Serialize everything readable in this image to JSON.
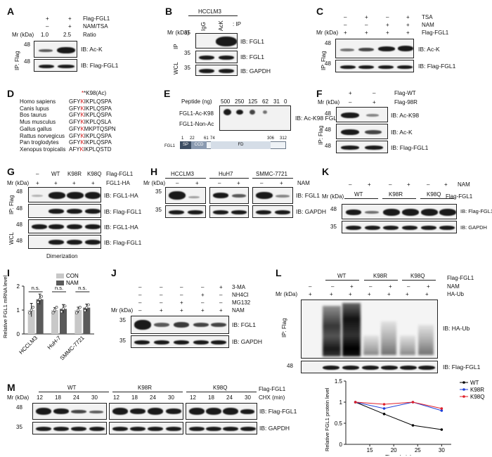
{
  "panel_labels": {
    "A": "A",
    "B": "B",
    "C": "C",
    "D": "D",
    "E": "E",
    "F": "F",
    "G": "G",
    "H": "H",
    "K": "K",
    "I": "I",
    "J": "J",
    "L": "L",
    "M": "M"
  },
  "common": {
    "mr": "Mr (kDa)",
    "ip_flag": "IP: Flag",
    "wcl": "WCL",
    "ip": "IP"
  },
  "A": {
    "rows": [
      "Flag-FGL1",
      "NAM/TSA",
      "Ratio"
    ],
    "row1": [
      "+",
      "+"
    ],
    "row2": [
      "–",
      "+"
    ],
    "ratio": [
      "1.0",
      "2.5"
    ],
    "mw": [
      "48",
      "48"
    ],
    "ib": [
      "IB: Ac-K",
      "IB: Flag-FGL1"
    ]
  },
  "B": {
    "cell": "HCCLM3",
    "lanes": [
      "IgG",
      "AcK"
    ],
    "ip_suffix": ": IP",
    "mw": [
      "35",
      "35",
      "35"
    ],
    "ib": [
      "IB: FGL1",
      "IB: FGL1",
      "IB: GAPDH"
    ]
  },
  "C": {
    "rows": [
      "TSA",
      "NAM",
      "Flag-FGL1"
    ],
    "tsa": [
      "–",
      "+",
      "–",
      "+"
    ],
    "nam": [
      "–",
      "–",
      "+",
      "+"
    ],
    "flag": [
      "+",
      "+",
      "+",
      "+"
    ],
    "mw": [
      "48",
      "48"
    ],
    "ib": [
      "IB: Ac-K",
      "IB: Flag-FGL1"
    ]
  },
  "D": {
    "header": "*K98(Ac)",
    "species": [
      "Homo sapiens",
      "Canis lupus",
      "Bos taurus",
      "Mus musculus",
      "Gallus gallus",
      "Rattus norvegicus",
      "Pan troglodytes",
      "Xenopus tropicalis"
    ],
    "pre": [
      "GFY",
      "GFY",
      "GFY",
      "GFY",
      "GFY",
      "GFY",
      "GFY",
      "AFY"
    ],
    "k": [
      "K",
      "K",
      "K",
      "K",
      "K",
      "K",
      "K",
      "K"
    ],
    "post": [
      "IKPLQSPA",
      "IKPLQSPA",
      "IKPLQSPA",
      "IKPLQSLA",
      "MKPTQSPN",
      "IKPLQSPA",
      "IKPLQSPA",
      "IKPLQSTD"
    ]
  },
  "E": {
    "peptide_label": "Peptide (ng)",
    "amounts": [
      "500",
      "250",
      "125",
      "62",
      "31",
      "0"
    ],
    "rows": [
      "FGL1-Ac-K98",
      "FGL1-Non-Ac"
    ],
    "ib": "IB: Ac-K98 FGL1",
    "domain_numbers": [
      "1",
      "22",
      "61",
      "74",
      "306",
      "312"
    ],
    "domain_name": "FGL1",
    "domains": [
      "SP",
      "CCD",
      "FD"
    ]
  },
  "F": {
    "rows": [
      "Flag-WT",
      "Flag-98R"
    ],
    "wt": [
      "+",
      "–"
    ],
    "r98": [
      "–",
      "+"
    ],
    "mw": [
      "48",
      "48",
      "48"
    ],
    "ib": [
      "IB: Ac-K98",
      "IB: Ac-K",
      "IB: Flag-FGL1"
    ]
  },
  "G": {
    "lanes": [
      "–",
      "WT",
      "K98R",
      "K98Q"
    ],
    "flag_label": "Flag-FGL1",
    "fgl1ha_label": "FGL1-HA",
    "fgl1ha": [
      "+",
      "+",
      "+",
      "+"
    ],
    "mw": [
      "48",
      "48",
      "48",
      "48"
    ],
    "ib": [
      "IB: FGL1-HA",
      "IB: Flag-FGL1",
      "IB: FGL1-HA",
      "IB: Flag-FGL1"
    ],
    "footer": "Dimerization"
  },
  "H": {
    "cells": [
      "HCCLM3",
      "HuH7",
      "SMMC-7721"
    ],
    "nam_label": "NAM",
    "nam": [
      "–",
      "+",
      "–",
      "+",
      "–",
      "+"
    ],
    "mw": [
      "35",
      "35"
    ],
    "ib": [
      "IB: FGL1",
      "IB: GAPDH"
    ]
  },
  "K": {
    "nam_label": "NAM",
    "flag_label": "Flag-FGL1",
    "nam": [
      "–",
      "+",
      "–",
      "+",
      "–",
      "+"
    ],
    "groups": [
      "WT",
      "K98R",
      "K98Q"
    ],
    "mw": [
      "48",
      "35"
    ],
    "ib": [
      "IB: Flag-FGL1",
      "IB: GAPDH"
    ]
  },
  "I": {
    "ylabel": "Relative FGL1 mRNA level",
    "legend": [
      "CON",
      "NAM"
    ],
    "sig": [
      "n.s.",
      "n.s.",
      "n.s."
    ]
  },
  "J": {
    "rows": [
      "3-MA",
      "NH4Cl",
      "MG132",
      "NAM"
    ],
    "ma": [
      "–",
      "–",
      "–",
      "–",
      "+"
    ],
    "nh4cl": [
      "–",
      "–",
      "–",
      "+",
      "–"
    ],
    "mg132": [
      "–",
      "–",
      "+",
      "–",
      "–"
    ],
    "nam": [
      "–",
      "+",
      "+",
      "+",
      "+"
    ],
    "mw": [
      "35",
      "35"
    ],
    "ib": [
      "IB: FGL1",
      "IB: GAPDH"
    ]
  },
  "L": {
    "groups": [
      "WT",
      "K98R",
      "K98Q"
    ],
    "rows": [
      "Flag-FGL1",
      "NAM",
      "HA-Ub"
    ],
    "nam": [
      "–",
      "–",
      "+",
      "–",
      "+",
      "–",
      "+"
    ],
    "haub": [
      "+",
      "+",
      "+",
      "+",
      "+",
      "+",
      "+"
    ],
    "mw": [
      "48"
    ],
    "ib": [
      "IB: HA-Ub",
      "IB: Flag-FGL1"
    ]
  },
  "M": {
    "groups": [
      "WT",
      "K98R",
      "K98Q"
    ],
    "times": [
      "12",
      "18",
      "24",
      "30"
    ],
    "flag_label": "Flag-FGL1",
    "chx_label": "CHX (min)",
    "mw": [
      "48",
      "35"
    ],
    "ib": [
      "IB: Flag-FGL1",
      "IB: GAPDH"
    ]
  },
  "chart_data": [
    {
      "type": "bar",
      "panel": "I",
      "categories": [
        "HCCLM3",
        "HuH-7",
        "SMMC-7721"
      ],
      "series": [
        {
          "name": "CON",
          "values": [
            1.0,
            1.0,
            1.0
          ],
          "color": "#c8c8c8"
        },
        {
          "name": "NAM",
          "values": [
            1.45,
            1.05,
            1.1
          ],
          "color": "#5a5a5a"
        }
      ],
      "errors": [
        [
          0.28,
          0.1,
          0.12
        ],
        [
          0.22,
          0.18,
          0.15
        ]
      ],
      "annotations": [
        "n.s.",
        "n.s.",
        "n.s."
      ],
      "ylabel": "Relative FGL1 mRNA level",
      "ylim": [
        0,
        2
      ],
      "yticks": [
        0,
        1,
        2
      ]
    },
    {
      "type": "line",
      "panel": "M",
      "x": [
        12,
        18,
        24,
        30
      ],
      "series": [
        {
          "name": "WT",
          "values": [
            1.0,
            0.72,
            0.45,
            0.35
          ],
          "color": "#000000"
        },
        {
          "name": "K98R",
          "values": [
            1.0,
            0.85,
            1.0,
            0.8
          ],
          "color": "#1f3fd8"
        },
        {
          "name": "K98Q",
          "values": [
            1.0,
            0.95,
            1.0,
            0.85
          ],
          "color": "#e0202a"
        }
      ],
      "xlabel": "Time (min)",
      "ylabel": "Relative FGL1 protein level",
      "xlim": [
        10,
        32
      ],
      "ylim": [
        0,
        1.5
      ],
      "xticks": [
        15,
        20,
        25,
        30
      ],
      "yticks": [
        0,
        0.5,
        1.0,
        1.5
      ]
    }
  ]
}
